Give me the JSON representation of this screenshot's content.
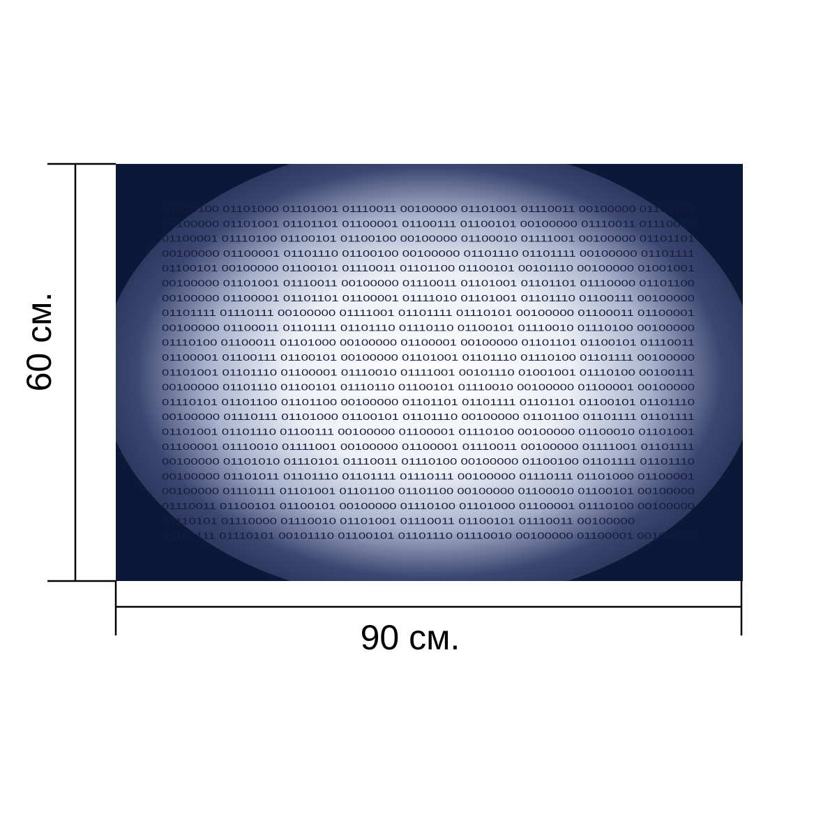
{
  "dimensions": {
    "height_label": "60 см.",
    "width_label": "90 см."
  },
  "image": {
    "binary_rows": [
      "01010100 01101000 01101001 01110011 00100000 01101001 01110011 00100000 01101101",
      "00100000 01101001 01101101 01100001 01100111 01100101 00100000 01110011 01110010",
      "01100001 01110100 01100101 01100100 00100000 01100010 01111001 00100000 01101101",
      "00100000 01100001 01101110 01100100 00100000 01101110 01101111 00100000 01101111",
      "01100101 00100000 01100101 01110011 01101100 01100101 00101110 00100000 01001001",
      "00100000 01101001 01110011 00100000 01110011 01101001 01101101 01110000 01101100",
      "00100000 01100001 01101101 01100001 01111010 01101001 01101110 01100111 00100000",
      "01101111 01110111 00100000 01111001 01101111 01110101 00100000 01100011 01100001",
      "00100000 01100011 01101111 01101110 01110110 01100101 01110010 01110100 00100000",
      "01110100 01100011 01101000 00100000 01100001 00100000 01101101 01100101 01110011",
      "01100001 01100111 01100101 00100000 01101001 01101110 01110100 01101111 00100000",
      "01101001 01101110 01100001 01110010 01111001 00101110 01001001 01110100 00100111",
      "00100000 01101110 01100101 01110110 01100101 01110010 00100000 01100001 00100000",
      "01110101 01101100 01101100 00100000 01101101 01101111 01101101 01100101 01101110",
      "00100000 01110111 01101000 01100101 01101110 00100000 01101100 01101111 01101111",
      "01101001 01101110 01100111 00100000 01100001 01110100 00100000 01100010 01101001",
      "01100001 01110010 01111001 00100000 01100001 01110011 00100000 01111001 01101111",
      "00100000 01101010 01110101 01110011 01110100 00100000 01100100 01101111 01101110",
      "00100000 01101011 01101110 01101111 01110111 00100000 01110111 01101000 01100001",
      "00100000 01110111 01101001 01101100 01101100 00100000 01100010 01100101 00100000",
      "01110011 01100101 01100101 00100000 01110100 01101000 01100001 01110100 00100000",
      "01110101 01110000 01110010 01101001 01110011 01100101 01110011 00100000",
      "01101111 01110101 00101110 01100101 01101110 01110010 00100000 01100001 00100000"
    ]
  }
}
